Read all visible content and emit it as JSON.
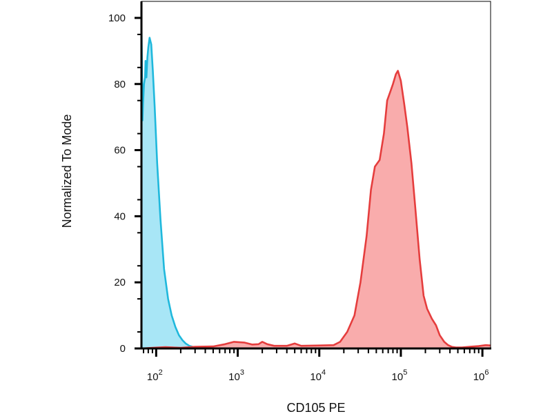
{
  "chart_data": {
    "type": "area",
    "title": "",
    "xlabel": "CD105 PE",
    "ylabel": "Normalized To Mode",
    "x_scale": "log",
    "xlim": [
      66,
      1260000
    ],
    "ylim": [
      0,
      105
    ],
    "grid": false,
    "legend": "none",
    "y_ticks": [
      {
        "value": 0,
        "label": "0"
      },
      {
        "value": 20,
        "label": "20"
      },
      {
        "value": 40,
        "label": "40"
      },
      {
        "value": 60,
        "label": "60"
      },
      {
        "value": 80,
        "label": "80"
      },
      {
        "value": 100,
        "label": "100"
      }
    ],
    "x_ticks": [
      {
        "value": 100,
        "base": "10",
        "exp": "2"
      },
      {
        "value": 1000,
        "base": "10",
        "exp": "3"
      },
      {
        "value": 10000,
        "base": "10",
        "exp": "4"
      },
      {
        "value": 100000,
        "base": "10",
        "exp": "5"
      },
      {
        "value": 1000000,
        "base": "10",
        "exp": "6"
      }
    ],
    "series": [
      {
        "color": "#1fb8dc",
        "fill": "#9fe3f5",
        "points": [
          [
            66,
            100
          ],
          [
            67,
            85
          ],
          [
            68,
            69
          ],
          [
            69,
            74
          ],
          [
            71,
            80
          ],
          [
            73,
            82
          ],
          [
            74,
            87
          ],
          [
            76,
            82
          ],
          [
            78,
            88
          ],
          [
            80,
            91
          ],
          [
            83,
            94
          ],
          [
            87,
            92
          ],
          [
            91,
            84
          ],
          [
            96,
            73
          ],
          [
            103,
            56
          ],
          [
            113,
            39
          ],
          [
            125,
            24
          ],
          [
            140,
            15
          ],
          [
            155,
            10
          ],
          [
            172,
            6.5
          ],
          [
            190,
            4
          ],
          [
            210,
            2.5
          ],
          [
            230,
            1.5
          ],
          [
            255,
            0.8
          ],
          [
            290,
            0.4
          ],
          [
            340,
            0.2
          ],
          [
            500,
            0.1
          ],
          [
            1260000,
            0
          ]
        ]
      },
      {
        "color": "#e53d3d",
        "fill": "#f8a3a3",
        "points": [
          [
            66,
            0
          ],
          [
            90,
            0.2
          ],
          [
            130,
            0.4
          ],
          [
            160,
            0.3
          ],
          [
            200,
            0.2
          ],
          [
            300,
            0.5
          ],
          [
            500,
            0.6
          ],
          [
            700,
            1.3
          ],
          [
            900,
            2
          ],
          [
            1200,
            1.8
          ],
          [
            1500,
            1.2
          ],
          [
            1800,
            1.3
          ],
          [
            2000,
            2
          ],
          [
            2300,
            1.3
          ],
          [
            2800,
            0.8
          ],
          [
            4000,
            0.8
          ],
          [
            5000,
            1.5
          ],
          [
            6000,
            0.8
          ],
          [
            10000,
            0.9
          ],
          [
            15000,
            1
          ],
          [
            18000,
            2
          ],
          [
            22000,
            5
          ],
          [
            27000,
            10
          ],
          [
            32000,
            20
          ],
          [
            38000,
            34
          ],
          [
            43000,
            48
          ],
          [
            48000,
            55
          ],
          [
            55000,
            57
          ],
          [
            62000,
            65
          ],
          [
            68000,
            75
          ],
          [
            75000,
            78
          ],
          [
            80000,
            80
          ],
          [
            87000,
            83
          ],
          [
            92000,
            84
          ],
          [
            100000,
            81
          ],
          [
            110000,
            74
          ],
          [
            120000,
            67
          ],
          [
            135000,
            56
          ],
          [
            150000,
            43
          ],
          [
            170000,
            27
          ],
          [
            190000,
            16
          ],
          [
            210000,
            12
          ],
          [
            240000,
            9
          ],
          [
            270000,
            7
          ],
          [
            300000,
            4
          ],
          [
            340000,
            2
          ],
          [
            380000,
            1
          ],
          [
            420000,
            0.5
          ],
          [
            480000,
            0.3
          ],
          [
            560000,
            0.3
          ],
          [
            700000,
            0.5
          ],
          [
            900000,
            0.7
          ],
          [
            1100000,
            1
          ],
          [
            1260000,
            0.9
          ]
        ]
      }
    ]
  }
}
